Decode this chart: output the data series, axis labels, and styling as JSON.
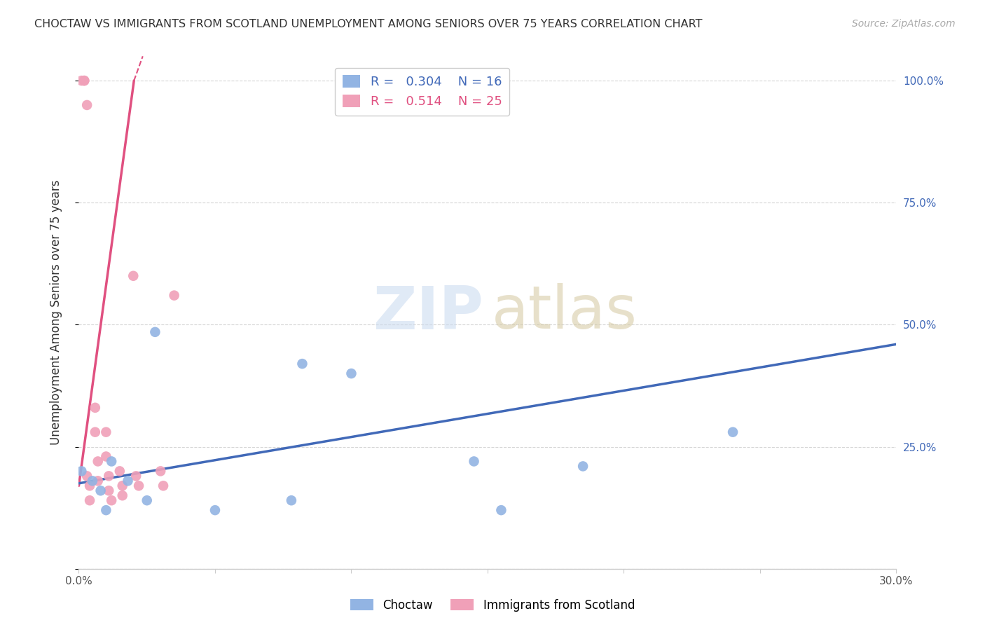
{
  "title": "CHOCTAW VS IMMIGRANTS FROM SCOTLAND UNEMPLOYMENT AMONG SENIORS OVER 75 YEARS CORRELATION CHART",
  "source": "Source: ZipAtlas.com",
  "ylabel": "Unemployment Among Seniors over 75 years",
  "x_min": 0.0,
  "x_max": 0.3,
  "y_min": 0.0,
  "y_max": 1.05,
  "x_ticks": [
    0.0,
    0.05,
    0.1,
    0.15,
    0.2,
    0.25,
    0.3
  ],
  "x_tick_labels": [
    "0.0%",
    "",
    "",
    "",
    "",
    "",
    "30.0%"
  ],
  "y_ticks": [
    0.0,
    0.25,
    0.5,
    0.75,
    1.0
  ],
  "y_tick_labels_right": [
    "",
    "25.0%",
    "50.0%",
    "75.0%",
    "100.0%"
  ],
  "choctaw_color": "#92b4e3",
  "scotland_color": "#f0a0b8",
  "choctaw_line_color": "#4169b8",
  "scotland_line_color": "#e05080",
  "R_choctaw": 0.304,
  "N_choctaw": 16,
  "R_scotland": 0.514,
  "N_scotland": 25,
  "choctaw_points_x": [
    0.001,
    0.005,
    0.008,
    0.01,
    0.012,
    0.018,
    0.025,
    0.028,
    0.05,
    0.078,
    0.082,
    0.1,
    0.145,
    0.155,
    0.185,
    0.24
  ],
  "choctaw_points_y": [
    0.2,
    0.18,
    0.16,
    0.12,
    0.22,
    0.18,
    0.14,
    0.485,
    0.12,
    0.14,
    0.42,
    0.4,
    0.22,
    0.12,
    0.21,
    0.28
  ],
  "scotland_points_x": [
    0.001,
    0.002,
    0.002,
    0.003,
    0.003,
    0.004,
    0.004,
    0.006,
    0.006,
    0.007,
    0.007,
    0.01,
    0.01,
    0.011,
    0.011,
    0.012,
    0.015,
    0.016,
    0.016,
    0.02,
    0.021,
    0.022,
    0.03,
    0.031,
    0.035
  ],
  "scotland_points_y": [
    1.0,
    1.0,
    1.0,
    0.95,
    0.19,
    0.17,
    0.14,
    0.33,
    0.28,
    0.22,
    0.18,
    0.28,
    0.23,
    0.19,
    0.16,
    0.14,
    0.2,
    0.17,
    0.15,
    0.6,
    0.19,
    0.17,
    0.2,
    0.17,
    0.56
  ],
  "choctaw_trend_x0": 0.0,
  "choctaw_trend_y0": 0.175,
  "choctaw_trend_x1": 0.3,
  "choctaw_trend_y1": 0.46,
  "scotland_slope": 41.0,
  "scotland_intercept": 0.17,
  "watermark_zip": "ZIP",
  "watermark_atlas": "atlas",
  "background_color": "#ffffff",
  "grid_color": "#cccccc",
  "legend_label_choctaw": "Choctaw",
  "legend_label_scotland": "Immigrants from Scotland"
}
